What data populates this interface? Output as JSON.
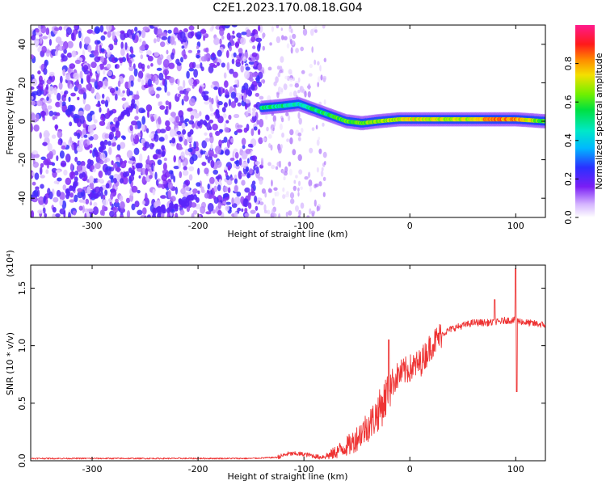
{
  "title": "C2E1.2023.170.08.18.G04",
  "chart_data": [
    {
      "type": "heatmap",
      "xlabel": "Height of straight line (km)",
      "ylabel": "Frequency (Hz)",
      "xlim": [
        -358,
        128
      ],
      "ylim": [
        -50,
        50
      ],
      "x_ticks": [
        -300,
        -200,
        -100,
        0,
        100
      ],
      "x_tick_labels": [
        "-300",
        "-200",
        "-100",
        "0",
        "100"
      ],
      "y_ticks": [
        -40,
        -20,
        0,
        20,
        40
      ],
      "y_tick_labels": [
        "-40",
        "-20",
        "0",
        "20",
        "40"
      ],
      "colorbar": {
        "label": "Normalized spectral amplitude",
        "range": [
          0,
          1
        ],
        "ticks": [
          0.0,
          0.2,
          0.4,
          0.6,
          0.8
        ],
        "tick_labels": [
          "0.0",
          "0.2",
          "0.4",
          "0.6",
          "0.8"
        ],
        "colormap": "white-purple-blue-cyan-green-yellow-red-magenta"
      },
      "noise_region": {
        "x_range": [
          -358,
          -140
        ],
        "amplitude": [
          0.1,
          0.25
        ]
      },
      "sparse_region": {
        "x_range": [
          -140,
          -80
        ],
        "amplitude": [
          0.02,
          0.12
        ]
      },
      "signal_ridge": {
        "x": [
          -140,
          -120,
          -105,
          -90,
          -75,
          -60,
          -45,
          -30,
          -10,
          0,
          30,
          60,
          80,
          100,
          128
        ],
        "frequency": [
          7,
          8,
          9,
          6,
          3,
          0,
          -1,
          0,
          1,
          1,
          1,
          1,
          1,
          1,
          0
        ],
        "amplitude": [
          0.5,
          0.5,
          0.45,
          0.5,
          0.55,
          0.6,
          0.6,
          0.65,
          0.7,
          0.72,
          0.7,
          0.7,
          0.85,
          0.8,
          0.6
        ]
      }
    },
    {
      "type": "line",
      "xlabel": "Height of straight line (km)",
      "ylabel": "SNR (10 * v/v)",
      "y_scale_label": "(x10⁴)",
      "xlim": [
        -358,
        128
      ],
      "ylim": [
        0.0,
        1.7
      ],
      "x_ticks": [
        -300,
        -200,
        -100,
        0,
        100
      ],
      "x_tick_labels": [
        "-300",
        "-200",
        "-100",
        "0",
        "100"
      ],
      "y_ticks": [
        0.0,
        0.5,
        1.0,
        1.5
      ],
      "y_tick_labels": [
        "0.0",
        "0.5",
        "1.0",
        "1.5"
      ],
      "color": "#ee3333",
      "series": [
        {
          "x": [
            -358,
            -300,
            -250,
            -200,
            -150,
            -125,
            -115,
            -105,
            -95,
            -85,
            -75,
            -65,
            -55,
            -45,
            -35,
            -25,
            -19,
            -15,
            -10,
            0,
            10,
            20,
            30,
            40,
            60,
            80,
            90,
            100,
            110,
            128
          ],
          "y": [
            0.02,
            0.02,
            0.02,
            0.02,
            0.02,
            0.03,
            0.06,
            0.06,
            0.05,
            0.03,
            0.05,
            0.1,
            0.15,
            0.25,
            0.35,
            0.5,
            0.65,
            0.7,
            0.75,
            0.8,
            0.85,
            1.0,
            1.1,
            1.15,
            1.2,
            1.2,
            1.22,
            1.22,
            1.2,
            1.18
          ]
        }
      ],
      "spikes": [
        {
          "x": -20,
          "y": 1.05
        },
        {
          "x": 80,
          "y": 1.4
        },
        {
          "x": 100,
          "y": 1.67
        },
        {
          "x": 101,
          "y": 0.6
        }
      ]
    }
  ]
}
